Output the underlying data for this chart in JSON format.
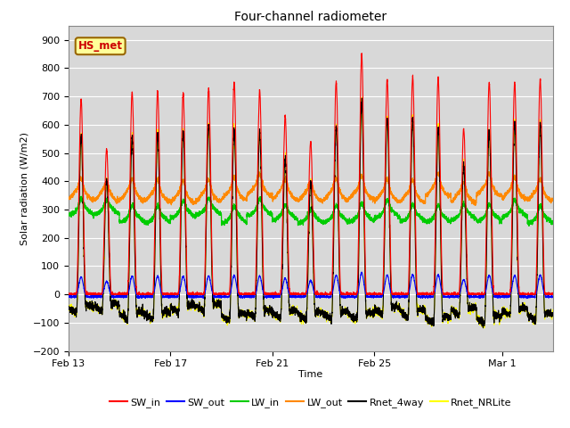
{
  "title": "Four-channel radiometer",
  "xlabel": "Time",
  "ylabel": "Solar radiation (W/m2)",
  "ylim": [
    -200,
    950
  ],
  "yticks": [
    -200,
    -100,
    0,
    100,
    200,
    300,
    400,
    500,
    600,
    700,
    800,
    900
  ],
  "date_labels": [
    "Feb 13",
    "Feb 17",
    "Feb 21",
    "Feb 25",
    "Mar 1"
  ],
  "date_positions": [
    0,
    4,
    8,
    12,
    17
  ],
  "annotation": "HS_met",
  "annotation_color": "#cc0000",
  "annotation_bg": "#ffff99",
  "annotation_border": "#996600",
  "colors": {
    "SW_in": "#ff0000",
    "SW_out": "#0000ff",
    "LW_in": "#00cc00",
    "LW_out": "#ff8800",
    "Rnet_4way": "#000000",
    "Rnet_NRLite": "#ffff00"
  },
  "n_days": 19,
  "figsize": [
    6.4,
    4.8
  ],
  "dpi": 100
}
